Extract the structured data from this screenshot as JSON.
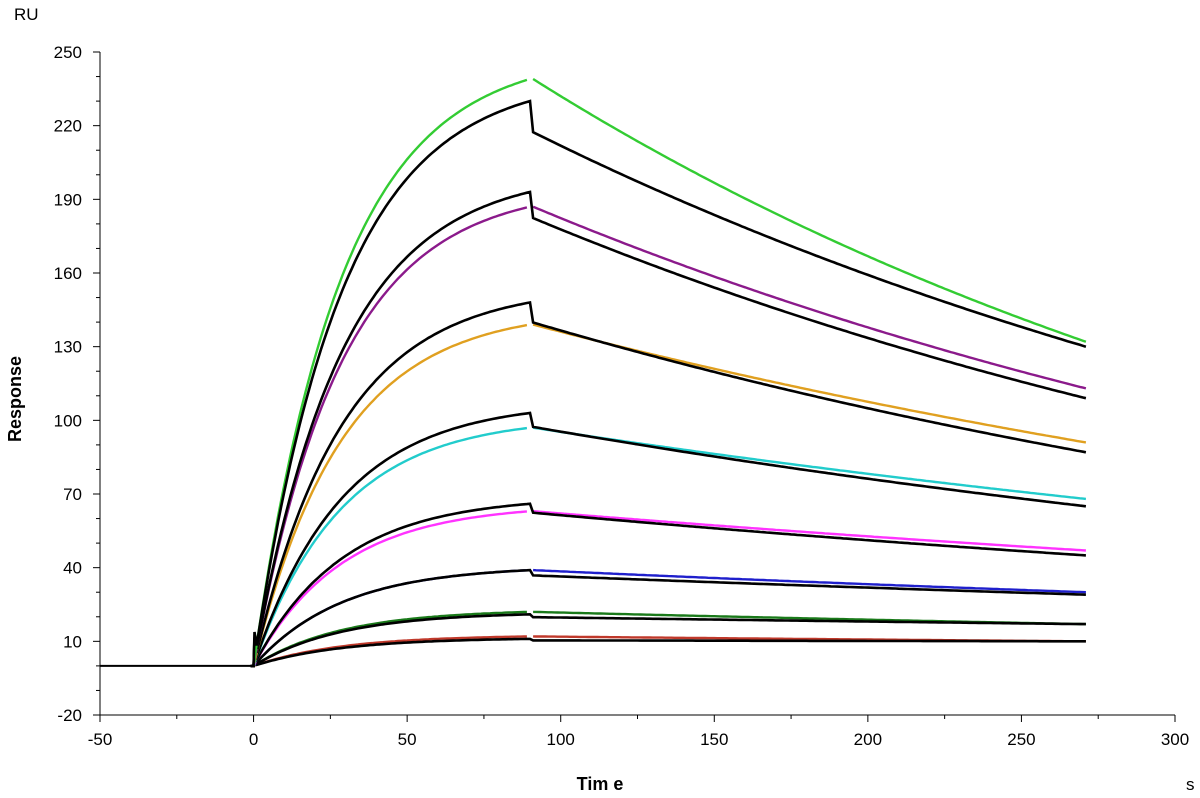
{
  "chart_data": {
    "type": "line",
    "title": "",
    "xlabel": "Tim e",
    "ylabel": "Response",
    "x_unit": "s",
    "y_unit": "RU",
    "xlim": [
      -50,
      300
    ],
    "ylim": [
      -20,
      250
    ],
    "x_ticks": [
      "-50",
      "0",
      "50",
      "100",
      "150",
      "200",
      "250",
      "300"
    ],
    "y_ticks": [
      "-20",
      "10",
      "40",
      "70",
      "100",
      "130",
      "160",
      "190",
      "220",
      "250"
    ],
    "grid": false,
    "legend": "none",
    "baseline": {
      "x_start": -50,
      "x_end": 0,
      "y": 0
    },
    "injection": {
      "start": 0,
      "end": 90,
      "stop": 271
    },
    "curves": [
      {
        "color": "#c0392b",
        "rmax_measured": 12,
        "r90_fit": 11,
        "r_end_measured": 10,
        "r_end_fit": 10
      },
      {
        "color": "#1a7a1a",
        "rmax_measured": 22,
        "r90_fit": 21,
        "r_end_measured": 17,
        "r_end_fit": 17
      },
      {
        "color": "#1f1fcc",
        "rmax_measured": 39,
        "r90_fit": 39,
        "r_end_measured": 30,
        "r_end_fit": 29
      },
      {
        "color": "#ff33ff",
        "rmax_measured": 63,
        "r90_fit": 66,
        "r_end_measured": 47,
        "r_end_fit": 45
      },
      {
        "color": "#22cccc",
        "rmax_measured": 97,
        "r90_fit": 103,
        "r_end_measured": 68,
        "r_end_fit": 65
      },
      {
        "color": "#e0a020",
        "rmax_measured": 139,
        "r90_fit": 148,
        "r_end_measured": 91,
        "r_end_fit": 87
      },
      {
        "color": "#8b1a8b",
        "rmax_measured": 187,
        "r90_fit": 193,
        "r_end_measured": 113,
        "r_end_fit": 109
      },
      {
        "color": "#33cc33",
        "rmax_measured": 239,
        "r90_fit": 230,
        "r_end_measured": 132,
        "r_end_fit": 130
      }
    ],
    "fit_color": "#000000"
  }
}
